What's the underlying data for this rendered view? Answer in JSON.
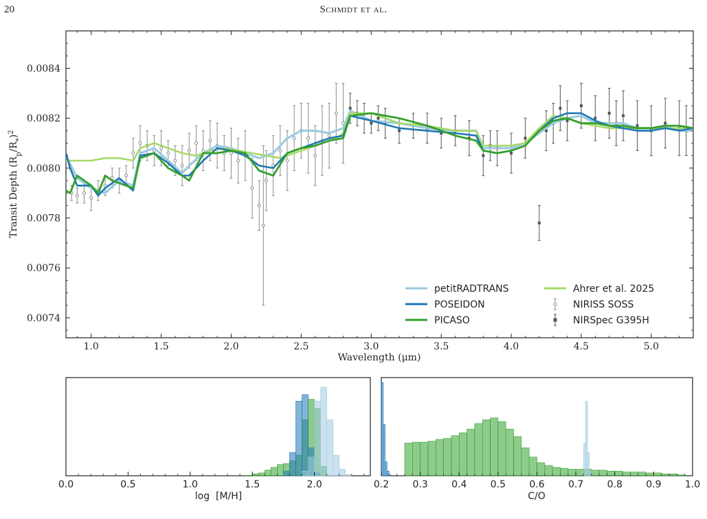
{
  "header": {
    "page_number": "20",
    "running_head": "Schmidt et al."
  },
  "colors": {
    "petitRADTRANS": "#9ecae1",
    "POSEIDON": "#1f78b4",
    "PICASO": "#33a02c",
    "Ahrer": "#a6d96a",
    "NIRISS": "#8c8c8c",
    "NIRSpec": "#555555"
  },
  "chart_data": [
    {
      "type": "line",
      "title": "",
      "xlabel": "Wavelength (μm)",
      "ylabel": "Transit Depth (R_p/R_*)^2",
      "ylabel_parts": {
        "main": "Transit Depth (R",
        "sub1": "p",
        "mid": "/R",
        "sub2": "*",
        "close": ")",
        "sup": "2"
      },
      "xlim": [
        0.82,
        5.3
      ],
      "ylim": [
        0.00732,
        0.00855
      ],
      "xticks": [
        1.0,
        1.5,
        2.0,
        2.5,
        3.0,
        3.5,
        4.0,
        4.5,
        5.0
      ],
      "xtick_labels": [
        "1.0",
        "1.5",
        "2.0",
        "2.5",
        "3.0",
        "3.5",
        "4.0",
        "4.5",
        "5.0"
      ],
      "yticks": [
        0.0074,
        0.0076,
        0.0078,
        0.008,
        0.0082,
        0.0084
      ],
      "ytick_labels": [
        "0.0074",
        "0.0076",
        "0.0078",
        "0.0080",
        "0.0082",
        "0.0084"
      ],
      "grid": false,
      "legend_position": "lower-right",
      "legend": [
        {
          "name": "petitRADTRANS",
          "kind": "line"
        },
        {
          "name": "Ahrer et al. 2025",
          "kind": "line"
        },
        {
          "name": "POSEIDON",
          "kind": "line"
        },
        {
          "name": "NIRISS SOSS",
          "kind": "errorbar-open"
        },
        {
          "name": "PICASO",
          "kind": "line"
        },
        {
          "name": "NIRSpec G395H",
          "kind": "errorbar-square"
        }
      ],
      "series": [
        {
          "name": "petitRADTRANS",
          "key": "petitRADTRANS",
          "x": [
            0.82,
            0.9,
            1.0,
            1.1,
            1.2,
            1.3,
            1.35,
            1.45,
            1.55,
            1.65,
            1.7,
            1.8,
            1.9,
            2.0,
            2.1,
            2.2,
            2.3,
            2.4,
            2.5,
            2.6,
            2.7,
            2.8,
            2.85,
            3.0,
            3.2,
            3.4,
            3.6,
            3.75,
            3.8,
            3.9,
            4.0,
            4.1,
            4.2,
            4.3,
            4.4,
            4.5,
            4.6,
            4.7,
            4.8,
            4.9,
            5.0,
            5.1,
            5.2,
            5.3
          ],
          "y": [
            0.00805,
            0.00796,
            0.00792,
            0.0079,
            0.00795,
            0.00793,
            0.00806,
            0.00808,
            0.00803,
            0.00798,
            0.00801,
            0.00806,
            0.00809,
            0.00808,
            0.00806,
            0.00804,
            0.00806,
            0.00812,
            0.00815,
            0.00815,
            0.00814,
            0.00816,
            0.00823,
            0.00819,
            0.00818,
            0.00816,
            0.00815,
            0.00815,
            0.00808,
            0.00808,
            0.00808,
            0.0081,
            0.00814,
            0.00818,
            0.0082,
            0.00821,
            0.00818,
            0.00818,
            0.00818,
            0.00816,
            0.00816,
            0.00817,
            0.00815,
            0.00815
          ]
        },
        {
          "name": "Ahrer et al. 2025",
          "key": "Ahrer",
          "x": [
            0.82,
            0.9,
            1.0,
            1.1,
            1.2,
            1.3,
            1.35,
            1.45,
            1.55,
            1.65,
            1.75,
            1.85,
            1.95,
            2.05,
            2.15,
            2.25,
            2.35,
            2.45,
            2.55,
            2.65,
            2.75,
            2.8,
            2.85,
            3.0,
            3.2,
            3.4,
            3.6,
            3.75,
            3.8,
            3.9,
            4.0,
            4.1,
            4.2,
            4.3,
            4.4,
            4.5,
            4.6,
            4.7,
            4.8,
            4.9,
            5.0,
            5.1,
            5.2,
            5.3
          ],
          "y": [
            0.00803,
            0.00803,
            0.00803,
            0.00804,
            0.00804,
            0.00803,
            0.00808,
            0.0081,
            0.00808,
            0.00806,
            0.00805,
            0.00807,
            0.00808,
            0.00807,
            0.00806,
            0.00805,
            0.00804,
            0.00806,
            0.00808,
            0.0081,
            0.00812,
            0.00814,
            0.00822,
            0.00822,
            0.00818,
            0.00817,
            0.00815,
            0.00815,
            0.00809,
            0.00809,
            0.00809,
            0.0081,
            0.00816,
            0.00821,
            0.0082,
            0.00818,
            0.00817,
            0.00816,
            0.00816,
            0.00816,
            0.00816,
            0.00816,
            0.00816,
            0.00816
          ]
        },
        {
          "name": "POSEIDON",
          "key": "POSEIDON",
          "x": [
            0.82,
            0.85,
            0.9,
            1.0,
            1.05,
            1.1,
            1.2,
            1.3,
            1.35,
            1.45,
            1.55,
            1.65,
            1.7,
            1.8,
            1.9,
            2.0,
            2.1,
            2.2,
            2.3,
            2.4,
            2.5,
            2.6,
            2.7,
            2.8,
            2.85,
            3.0,
            3.2,
            3.4,
            3.6,
            3.75,
            3.8,
            3.9,
            4.0,
            4.1,
            4.2,
            4.3,
            4.4,
            4.5,
            4.6,
            4.7,
            4.8,
            4.9,
            5.0,
            5.1,
            5.2,
            5.3
          ],
          "y": [
            0.00806,
            0.008,
            0.00793,
            0.00793,
            0.00789,
            0.00792,
            0.00796,
            0.00791,
            0.00805,
            0.00806,
            0.00802,
            0.00797,
            0.00797,
            0.00803,
            0.00808,
            0.00807,
            0.00805,
            0.00801,
            0.008,
            0.00806,
            0.00808,
            0.0081,
            0.00812,
            0.00813,
            0.00821,
            0.00819,
            0.00816,
            0.00815,
            0.00814,
            0.00813,
            0.00807,
            0.00806,
            0.00807,
            0.00809,
            0.00815,
            0.0082,
            0.00822,
            0.00822,
            0.00819,
            0.00817,
            0.00816,
            0.00815,
            0.00815,
            0.00816,
            0.00815,
            0.00816
          ]
        },
        {
          "name": "PICASO",
          "key": "PICASO",
          "x": [
            0.82,
            0.85,
            0.9,
            0.95,
            1.0,
            1.05,
            1.1,
            1.15,
            1.2,
            1.3,
            1.35,
            1.45,
            1.55,
            1.65,
            1.7,
            1.8,
            1.9,
            2.0,
            2.1,
            2.2,
            2.3,
            2.4,
            2.5,
            2.6,
            2.7,
            2.8,
            2.85,
            3.0,
            3.2,
            3.4,
            3.6,
            3.75,
            3.8,
            3.9,
            4.0,
            4.1,
            4.2,
            4.3,
            4.4,
            4.5,
            4.6,
            4.7,
            4.8,
            4.9,
            5.0,
            5.1,
            5.2,
            5.3
          ],
          "y": [
            0.00791,
            0.0079,
            0.00797,
            0.00795,
            0.00793,
            0.0079,
            0.00797,
            0.00795,
            0.00794,
            0.00792,
            0.00804,
            0.00806,
            0.008,
            0.00797,
            0.00795,
            0.00806,
            0.00806,
            0.00807,
            0.00806,
            0.00799,
            0.00797,
            0.00806,
            0.00808,
            0.00809,
            0.00811,
            0.00812,
            0.00821,
            0.00822,
            0.0082,
            0.00817,
            0.00813,
            0.00811,
            0.00807,
            0.00806,
            0.00807,
            0.00809,
            0.00815,
            0.00819,
            0.0082,
            0.00818,
            0.00818,
            0.00817,
            0.00817,
            0.00816,
            0.00816,
            0.00817,
            0.00817,
            0.00816
          ]
        }
      ],
      "niriss_soss": {
        "x": [
          0.86,
          0.9,
          0.95,
          1.0,
          1.05,
          1.1,
          1.15,
          1.2,
          1.25,
          1.3,
          1.35,
          1.4,
          1.45,
          1.5,
          1.55,
          1.6,
          1.65,
          1.7,
          1.75,
          1.8,
          1.85,
          1.9,
          1.95,
          2.0,
          2.05,
          2.1,
          2.15,
          2.2,
          2.23,
          2.25,
          2.3,
          2.35,
          2.4,
          2.45,
          2.5,
          2.55,
          2.6,
          2.65,
          2.7,
          2.75,
          2.8
        ],
        "y": [
          0.0079,
          0.00789,
          0.0079,
          0.00788,
          0.00791,
          0.00793,
          0.00796,
          0.00795,
          0.00797,
          0.00806,
          0.0081,
          0.00809,
          0.00807,
          0.00808,
          0.00806,
          0.00803,
          0.00801,
          0.00807,
          0.0081,
          0.00807,
          0.00811,
          0.00809,
          0.00806,
          0.00806,
          0.00803,
          0.00805,
          0.00792,
          0.00785,
          0.00777,
          0.00795,
          0.00801,
          0.00807,
          0.00803,
          0.00812,
          0.00815,
          0.00812,
          0.00805,
          0.00811,
          0.00813,
          0.00822,
          0.00818
        ],
        "err": [
          3e-05,
          3e-05,
          4e-05,
          5e-05,
          4e-05,
          4e-05,
          4e-05,
          5e-05,
          4e-05,
          6e-05,
          7e-05,
          6e-05,
          6e-05,
          7e-05,
          5e-05,
          6e-05,
          8e-05,
          7e-05,
          7e-05,
          8e-05,
          8e-05,
          9e-05,
          7e-05,
          0.0001,
          9e-05,
          0.0001,
          0.00012,
          0.0001,
          0.00032,
          0.00012,
          0.00012,
          0.0001,
          0.00012,
          0.00013,
          0.00011,
          0.00014,
          0.00012,
          0.00014,
          0.00013,
          0.00012,
          0.00016
        ]
      },
      "nirspec_g395h": {
        "x": [
          2.85,
          2.9,
          2.95,
          3.0,
          3.05,
          3.1,
          3.2,
          3.3,
          3.4,
          3.5,
          3.6,
          3.7,
          3.8,
          3.85,
          3.9,
          4.0,
          4.1,
          4.2,
          4.25,
          4.3,
          4.35,
          4.4,
          4.5,
          4.6,
          4.7,
          4.75,
          4.8,
          4.9,
          5.0,
          5.1,
          5.2,
          5.25
        ],
        "y": [
          0.00824,
          0.00822,
          0.0082,
          0.00818,
          0.0082,
          0.00818,
          0.00815,
          0.00817,
          0.00816,
          0.00814,
          0.00815,
          0.00812,
          0.00805,
          0.00809,
          0.00808,
          0.00806,
          0.00812,
          0.00778,
          0.00815,
          0.00818,
          0.00824,
          0.00819,
          0.00825,
          0.0082,
          0.00822,
          0.00818,
          0.00821,
          0.00817,
          0.00815,
          0.00818,
          0.00816,
          0.00815
        ],
        "err": [
          6e-05,
          5e-05,
          6e-05,
          4e-05,
          5e-05,
          6e-05,
          5e-05,
          5e-05,
          6e-05,
          6e-05,
          6e-05,
          7e-05,
          8e-05,
          6e-05,
          7e-05,
          8e-05,
          8e-05,
          7e-05,
          8e-05,
          8e-05,
          9e-05,
          8e-05,
          9e-05,
          9e-05,
          0.0001,
          9e-05,
          0.0001,
          0.0001,
          0.0001,
          0.0001,
          0.00011,
          0.0001
        ]
      }
    },
    {
      "type": "histogram",
      "xlabel": "log  [M/H]",
      "xlim": [
        0.0,
        2.45
      ],
      "xticks": [
        0.0,
        0.5,
        1.0,
        1.5,
        2.0
      ],
      "xtick_labels": [
        "0.0",
        "0.5",
        "1.0",
        "1.5",
        "2.0"
      ],
      "series": [
        {
          "name": "PICASO",
          "key": "PICASO",
          "bins": [
            1.45,
            1.5,
            1.55,
            1.6,
            1.65,
            1.7,
            1.75,
            1.8,
            1.85,
            1.9,
            1.95,
            2.0,
            2.05
          ],
          "counts": [
            0.005,
            0.02,
            0.03,
            0.06,
            0.09,
            0.12,
            0.13,
            0.16,
            0.22,
            0.6,
            0.82,
            0.72,
            0.1
          ]
        },
        {
          "name": "POSEIDON",
          "key": "POSEIDON",
          "bins": [
            1.75,
            1.8,
            1.85,
            1.9,
            1.95,
            2.0
          ],
          "counts": [
            0.05,
            0.25,
            0.8,
            0.87,
            0.3,
            0.03
          ]
        },
        {
          "name": "petitRADTRANS",
          "key": "petitRADTRANS",
          "bins": [
            1.9,
            1.95,
            2.0,
            2.05,
            2.1,
            2.15,
            2.2,
            2.25
          ],
          "counts": [
            0.05,
            0.2,
            0.8,
            0.95,
            0.6,
            0.22,
            0.07,
            0.01
          ]
        }
      ]
    },
    {
      "type": "histogram",
      "xlabel": "C/O",
      "xlim": [
        0.2,
        1.0
      ],
      "xticks": [
        0.2,
        0.3,
        0.4,
        0.5,
        0.6,
        0.7,
        0.8,
        0.9,
        1.0
      ],
      "xtick_labels": [
        "0.2",
        "0.3",
        "0.4",
        "0.5",
        "0.6",
        "0.7",
        "0.8",
        "0.9",
        "1.0"
      ],
      "series": [
        {
          "name": "PICASO",
          "key": "PICASO",
          "bins": [
            0.26,
            0.28,
            0.3,
            0.32,
            0.34,
            0.36,
            0.38,
            0.4,
            0.42,
            0.44,
            0.46,
            0.48,
            0.5,
            0.52,
            0.54,
            0.56,
            0.58,
            0.6,
            0.62,
            0.64,
            0.66,
            0.68,
            0.7,
            0.72,
            0.74,
            0.76,
            0.78,
            0.8,
            0.82,
            0.84,
            0.86,
            0.88,
            0.9,
            0.92,
            0.94,
            0.96
          ],
          "counts": [
            0.35,
            0.36,
            0.36,
            0.37,
            0.39,
            0.4,
            0.43,
            0.46,
            0.5,
            0.56,
            0.6,
            0.62,
            0.58,
            0.5,
            0.42,
            0.3,
            0.2,
            0.14,
            0.11,
            0.09,
            0.08,
            0.07,
            0.07,
            0.07,
            0.06,
            0.06,
            0.05,
            0.05,
            0.04,
            0.04,
            0.04,
            0.03,
            0.03,
            0.02,
            0.02,
            0.01
          ]
        },
        {
          "name": "POSEIDON",
          "key": "POSEIDON",
          "bins": [
            0.2,
            0.205,
            0.21,
            0.215,
            0.22
          ],
          "counts": [
            1.0,
            0.55,
            0.15,
            0.05,
            0.01
          ]
        },
        {
          "name": "petitRADTRANS",
          "key": "petitRADTRANS",
          "bins": [
            0.72,
            0.725,
            0.73,
            0.735
          ],
          "counts": [
            0.35,
            0.8,
            0.25,
            0.05
          ]
        }
      ]
    }
  ]
}
